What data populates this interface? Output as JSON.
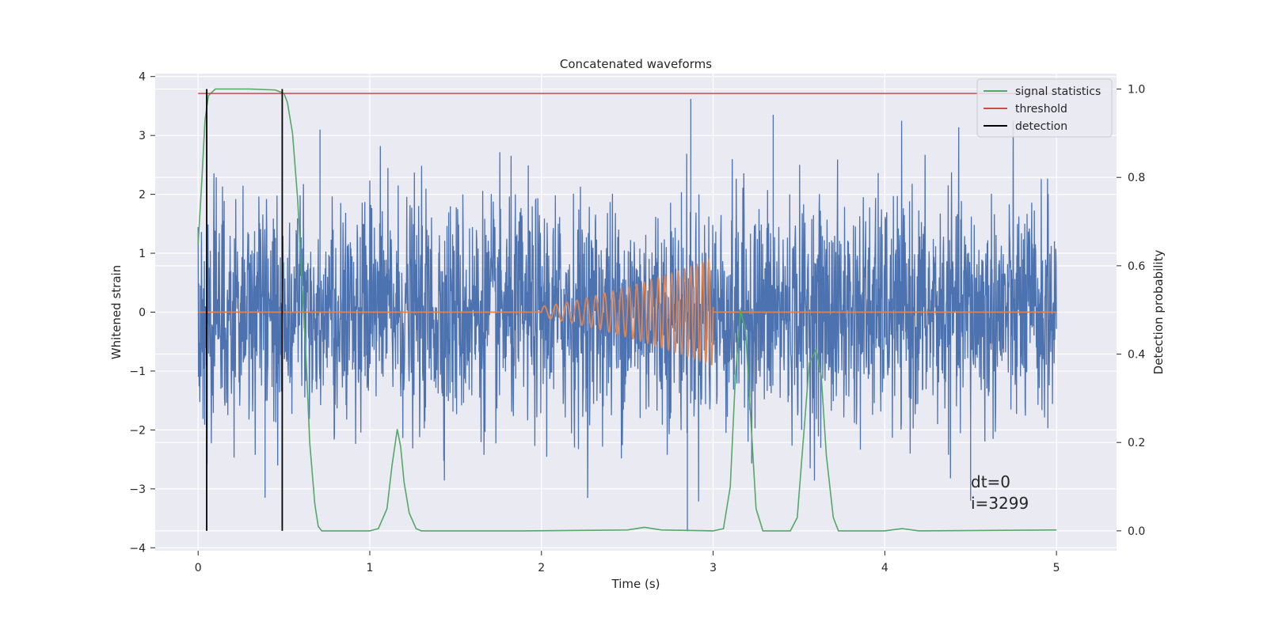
{
  "chart_data": {
    "type": "line",
    "title": "Concatenated waveforms",
    "xlabel": "Time (s)",
    "ylabel": "Whitened strain",
    "y2label": "Detection probability",
    "xlim": [
      -0.25,
      5.35
    ],
    "ylim": [
      -4.05,
      4.05
    ],
    "y2lim": [
      -0.045,
      1.035
    ],
    "xticks": [
      0,
      1,
      2,
      3,
      4,
      5
    ],
    "yticks": [
      -4,
      -3,
      -2,
      -1,
      0,
      1,
      2,
      3,
      4
    ],
    "y2ticks": [
      0.0,
      0.2,
      0.4,
      0.6,
      0.8,
      1.0
    ],
    "xtick_labels": [
      "0",
      "1",
      "2",
      "3",
      "4",
      "5"
    ],
    "ytick_labels": [
      "−4",
      "−3",
      "−2",
      "−1",
      "0",
      "1",
      "2",
      "3",
      "4"
    ],
    "y2tick_labels": [
      "0.0",
      "0.2",
      "0.4",
      "0.6",
      "0.8",
      "1.0"
    ],
    "grid": true,
    "legend_position": "top-right",
    "colors": {
      "noise": "#4c72b0",
      "injection": "#dd8452",
      "statistic": "#55a868",
      "threshold": "#c44e52",
      "detection": "#000000",
      "background": "#eaeaf2",
      "grid": "#ffffff"
    },
    "series": [
      {
        "key": "noise",
        "axis": "left",
        "description": "whitened noise samples, approx. unit-variance, x from 0 to 5 s, extremes ~ +3.6 / -3.7"
      },
      {
        "key": "injection",
        "axis": "left",
        "chirp": {
          "t_start": 2.0,
          "t_end": 3.0,
          "amp_start": 0.1,
          "amp_end": 0.9,
          "f_start": 14,
          "f_end": 30
        },
        "points": [
          [
            0,
            0
          ],
          [
            2.0,
            0
          ],
          [
            3.0,
            0
          ],
          [
            5.0,
            0
          ]
        ]
      },
      {
        "name": "signal statistics",
        "key": "statistic",
        "axis": "right",
        "points": [
          [
            0.0,
            0.65
          ],
          [
            0.02,
            0.78
          ],
          [
            0.04,
            0.93
          ],
          [
            0.06,
            0.985
          ],
          [
            0.1,
            1.0
          ],
          [
            0.3,
            1.0
          ],
          [
            0.45,
            0.998
          ],
          [
            0.5,
            0.99
          ],
          [
            0.52,
            0.97
          ],
          [
            0.55,
            0.9
          ],
          [
            0.58,
            0.75
          ],
          [
            0.6,
            0.6
          ],
          [
            0.63,
            0.38
          ],
          [
            0.65,
            0.2
          ],
          [
            0.68,
            0.06
          ],
          [
            0.7,
            0.01
          ],
          [
            0.72,
            0.0
          ],
          [
            1.0,
            0.0
          ],
          [
            1.05,
            0.005
          ],
          [
            1.1,
            0.05
          ],
          [
            1.13,
            0.15
          ],
          [
            1.16,
            0.23
          ],
          [
            1.18,
            0.19
          ],
          [
            1.2,
            0.11
          ],
          [
            1.23,
            0.04
          ],
          [
            1.27,
            0.005
          ],
          [
            1.3,
            0.0
          ],
          [
            1.9,
            0.0
          ],
          [
            2.5,
            0.002
          ],
          [
            2.6,
            0.008
          ],
          [
            2.7,
            0.002
          ],
          [
            3.0,
            0.0
          ],
          [
            3.06,
            0.005
          ],
          [
            3.1,
            0.1
          ],
          [
            3.13,
            0.35
          ],
          [
            3.16,
            0.5
          ],
          [
            3.19,
            0.45
          ],
          [
            3.22,
            0.25
          ],
          [
            3.25,
            0.05
          ],
          [
            3.29,
            0.0
          ],
          [
            3.45,
            0.0
          ],
          [
            3.49,
            0.03
          ],
          [
            3.52,
            0.18
          ],
          [
            3.56,
            0.38
          ],
          [
            3.6,
            0.41
          ],
          [
            3.63,
            0.35
          ],
          [
            3.66,
            0.17
          ],
          [
            3.7,
            0.03
          ],
          [
            3.73,
            0.0
          ],
          [
            4.0,
            0.0
          ],
          [
            4.1,
            0.005
          ],
          [
            4.2,
            0.0
          ],
          [
            5.0,
            0.002
          ]
        ]
      },
      {
        "name": "threshold",
        "key": "threshold",
        "axis": "right",
        "points": [
          [
            0.0,
            0.99
          ],
          [
            5.0,
            0.99
          ]
        ]
      },
      {
        "name": "detection",
        "key": "detection",
        "axis": "right",
        "points": [
          [
            0.05,
            0.0
          ],
          [
            0.05,
            1.0
          ],
          [
            0.49,
            0.0
          ],
          [
            0.49,
            1.0
          ]
        ]
      }
    ],
    "legend": [
      "signal statistics",
      "threshold",
      "detection"
    ],
    "annotations": [
      "dt=0",
      "i=3299"
    ]
  }
}
